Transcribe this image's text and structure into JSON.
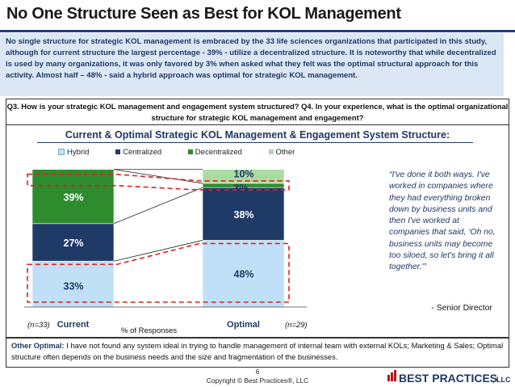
{
  "header": {
    "title": "No One Structure Seen as Best for KOL Management",
    "intro": "No single structure for strategic KOL management is embraced by the 33 life sciences organizations that participated in this study, although for current structure the largest percentage - 39% - utilize a decentralized structure. It is noteworthy that while decentralized is used by many organizations, it was only favored by 3% when asked what they felt was the optimal structural approach for this activity. Almost half – 48% - said a hybrid approach was optimal for strategic KOL management.",
    "question": "Q3. How is your strategic KOL management and engagement system structured? Q4. In your experience, what is the optimal organizational structure for strategic KOL management and engagement?"
  },
  "colors": {
    "hybrid": "#bfe0f7",
    "centralized": "#1f3a66",
    "decentralized": "#2e8c2e",
    "other": "#a8dca0",
    "highlight": "#e02020",
    "title_blue": "#1f3866"
  },
  "chart_data": {
    "type": "bar",
    "stacked": true,
    "title": "Current & Optimal Strategic KOL Management & Engagement System Structure:",
    "categories": [
      "Current",
      "Optimal"
    ],
    "sample_sizes": [
      "(n=33)",
      "(n=29)"
    ],
    "xlabel": "% of Responses",
    "ylim": [
      0,
      100
    ],
    "legend_position": "top",
    "series": [
      {
        "name": "Hybrid",
        "values": [
          33,
          48
        ],
        "labels": [
          "33%",
          "48%"
        ]
      },
      {
        "name": "Centralized",
        "values": [
          27,
          38
        ],
        "labels": [
          "27%",
          "38%"
        ]
      },
      {
        "name": "Decentralized",
        "values": [
          39,
          3
        ],
        "labels": [
          "39%",
          "3%"
        ]
      },
      {
        "name": "Other",
        "values": [
          0,
          10
        ],
        "labels": [
          "",
          "10%"
        ]
      }
    ],
    "highlighted": [
      {
        "series": "Decentralized"
      },
      {
        "series": "Hybrid"
      }
    ]
  },
  "quote": {
    "text": "“I've done it both ways. I've worked in companies where they had everything broken down by business units and then I've worked at companies that said, ‘Oh no, business units may become too siloed, so let's bring it all together.'”",
    "attribution": "- Senior Director"
  },
  "footnote": {
    "label": "Other Optimal:",
    "text": " I have not found any system ideal in trying to handle management of internal team with external KOLs; Marketing & Sales; Optimal structure often depends on the business needs and the size and fragmentation of the businesses."
  },
  "footer": {
    "page_number": "6",
    "copyright": "Copyright © Best Practices®, LLC",
    "logo_text": "BEST PRACTICES",
    "logo_suffix": ", LLC"
  }
}
